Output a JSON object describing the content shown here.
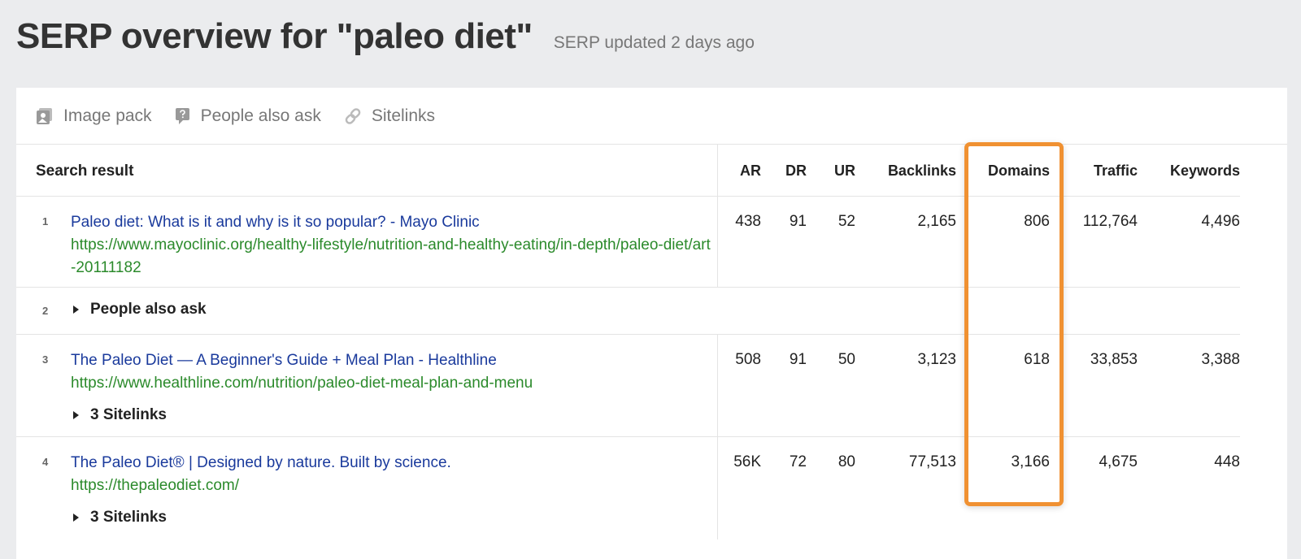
{
  "header": {
    "title": "SERP overview for \"paleo diet\"",
    "updated": "SERP updated 2 days ago"
  },
  "features": [
    {
      "icon": "image-icon",
      "label": "Image pack"
    },
    {
      "icon": "question-icon",
      "label": "People also ask"
    },
    {
      "icon": "link-icon",
      "label": "Sitelinks"
    }
  ],
  "columns": [
    "Search result",
    "AR",
    "DR",
    "UR",
    "Backlinks",
    "Domains",
    "Traffic",
    "Keywords"
  ],
  "highlight_color": "#f09132",
  "rows": [
    {
      "pos": "1",
      "title": "Paleo diet: What is it and why is it so popular? - Mayo Clinic",
      "url": "https://www.mayoclinic.org/healthy-lifestyle/nutrition-and-healthy-eating/in-depth/paleo-diet/art-20111182",
      "ar": "438",
      "dr": "91",
      "ur": "52",
      "backlinks": "2,165",
      "domains": "806",
      "traffic": "112,764",
      "keywords": "4,496"
    },
    {
      "pos": "2",
      "label": "People also ask"
    },
    {
      "pos": "3",
      "title": "The Paleo Diet — A Beginner's Guide + Meal Plan - Healthline",
      "url": "https://www.healthline.com/nutrition/paleo-diet-meal-plan-and-menu",
      "ar": "508",
      "dr": "91",
      "ur": "50",
      "backlinks": "3,123",
      "domains": "618",
      "traffic": "33,853",
      "keywords": "3,388",
      "sitelinks": "3 Sitelinks"
    },
    {
      "pos": "4",
      "title": "The Paleo Diet® | Designed by nature. Built by science.",
      "url": "https://thepaleodiet.com/",
      "ar": "56K",
      "dr": "72",
      "ur": "80",
      "backlinks": "77,513",
      "domains": "3,166",
      "traffic": "4,675",
      "keywords": "448",
      "sitelinks": "3 Sitelinks"
    }
  ]
}
